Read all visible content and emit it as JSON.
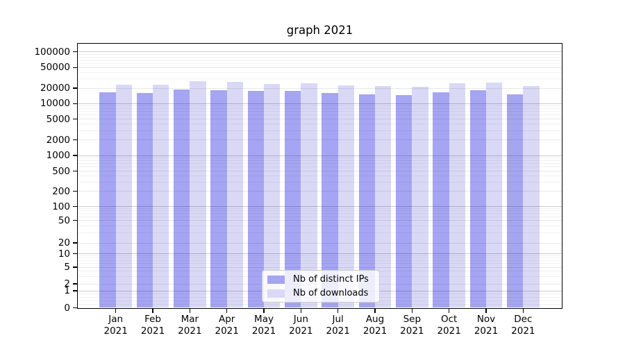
{
  "title": "graph 2021",
  "legend": [
    {
      "label": "Nb of distinct IPs",
      "color": "#a5a5f3"
    },
    {
      "label": "Nb of downloads",
      "color": "#d9d9f6"
    }
  ],
  "chart_data": {
    "type": "bar",
    "title": "graph 2021",
    "categories": [
      "Jan 2021",
      "Feb 2021",
      "Mar 2021",
      "Apr 2021",
      "May 2021",
      "Jun 2021",
      "Jul 2021",
      "Aug 2021",
      "Sep 2021",
      "Oct 2021",
      "Nov 2021",
      "Dec 2021"
    ],
    "series": [
      {
        "name": "Nb of distinct IPs",
        "color": "#a5a5f3",
        "values": [
          16400,
          15900,
          18550,
          18150,
          17800,
          17650,
          16300,
          15250,
          14750,
          16700,
          18000,
          15100
        ]
      },
      {
        "name": "Nb of downloads",
        "color": "#d9d9f6",
        "values": [
          23050,
          23250,
          27400,
          26100,
          24000,
          24750,
          22800,
          21900,
          21400,
          24450,
          25900,
          22000
        ]
      }
    ],
    "xlabel": "",
    "ylabel": "",
    "yscale": "symlog",
    "yticks": [
      100000,
      50000,
      20000,
      10000,
      5000,
      2000,
      1000,
      500,
      200,
      100,
      50,
      20,
      10,
      5,
      2,
      1,
      0
    ],
    "ylim": [
      0,
      147000
    ],
    "grid": true,
    "grid_which": "both",
    "legend_position": "lower center"
  }
}
